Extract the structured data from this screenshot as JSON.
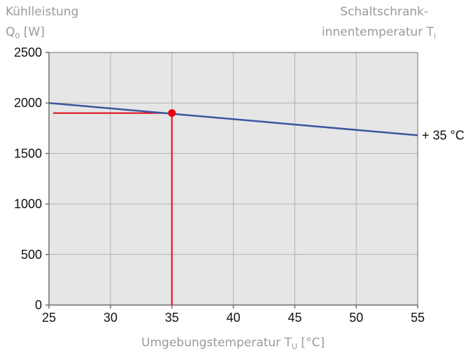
{
  "chart_data": {
    "type": "line",
    "y_title_line1": "Kühlleistung",
    "y_title_line2_main": "Q",
    "y_title_line2_sub": "0",
    "y_title_line2_unit": " [W]",
    "right_title_line1": "Schaltschrank-",
    "right_title_line2_main": "innentemperatur T",
    "right_title_line2_sub": "i",
    "x_title_main": "Umgebungstemperatur T",
    "x_title_sub": "U",
    "x_title_unit": " [°C]",
    "xlim": [
      25,
      55
    ],
    "ylim": [
      0,
      2500
    ],
    "x_ticks": [
      25,
      30,
      35,
      40,
      45,
      50,
      55
    ],
    "y_ticks": [
      0,
      500,
      1000,
      1500,
      2000,
      2500
    ],
    "grid": true,
    "series": [
      {
        "name": "+ 35 °C",
        "x": [
          25,
          55
        ],
        "y": [
          2000,
          1680
        ],
        "color": "#3a56a0"
      }
    ],
    "marker": {
      "x": 35,
      "y": 1900,
      "color": "#e30613"
    },
    "colors": {
      "plot_background": "#e6e6e6",
      "grid": "#b0b0b0",
      "axis": "#6e6e6e"
    }
  }
}
